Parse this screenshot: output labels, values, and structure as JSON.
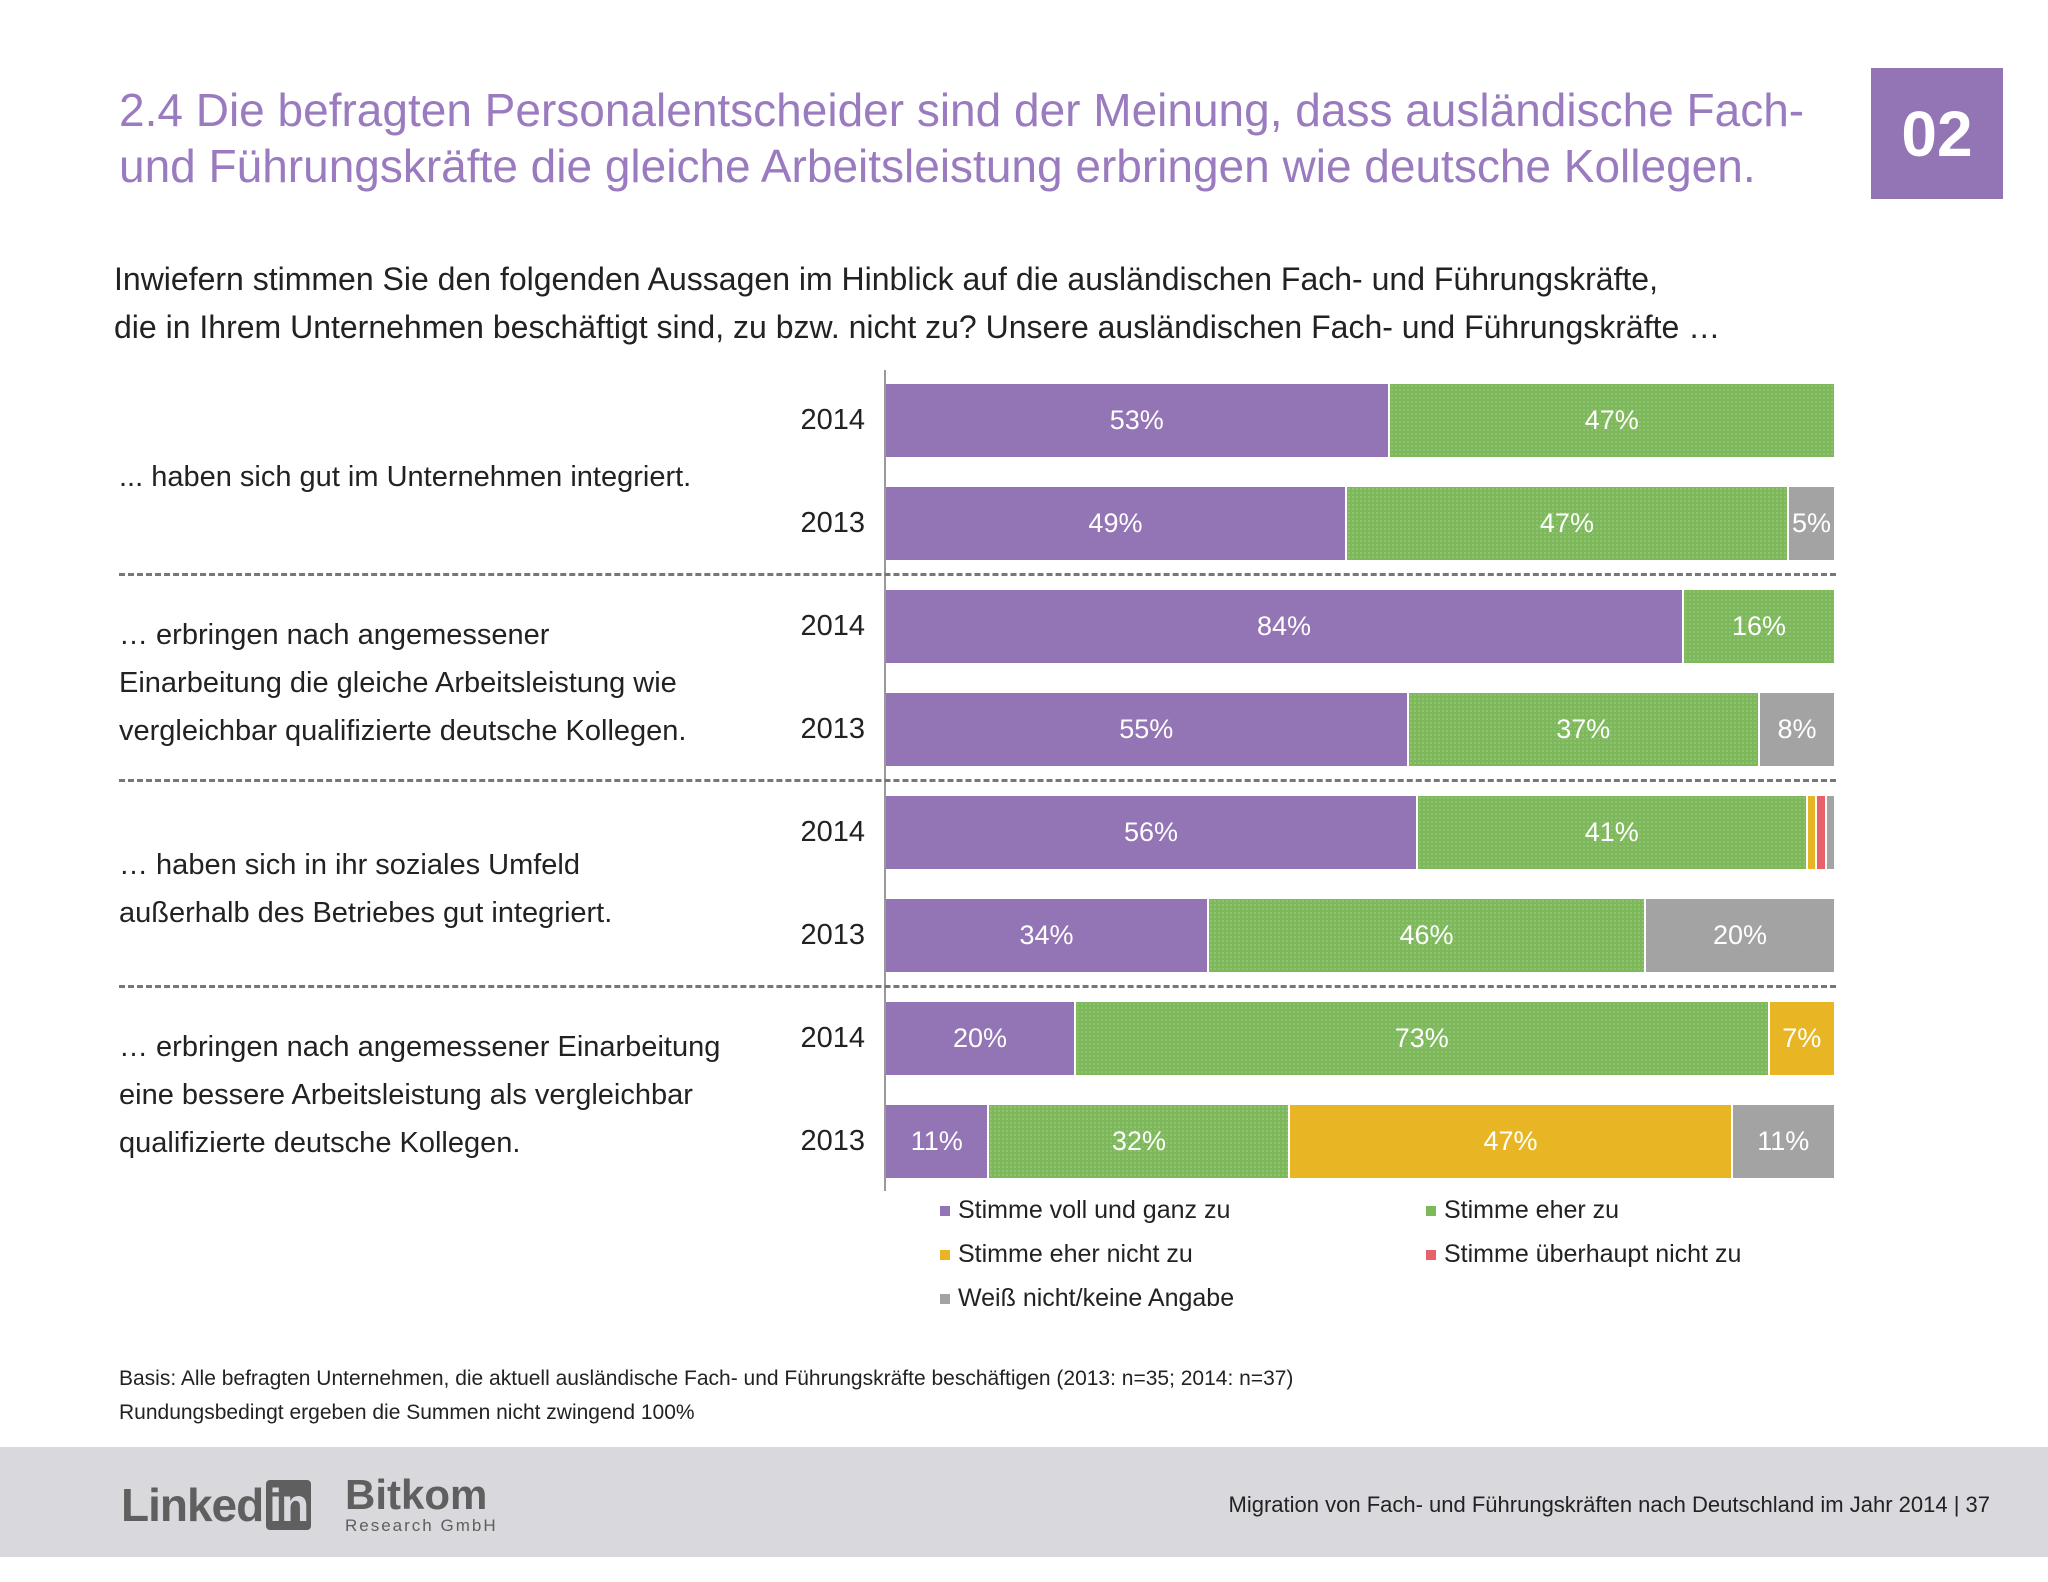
{
  "header": {
    "title_line1": "2.4 Die befragten Personalentscheider sind der Meinung, dass ausländische Fach-",
    "title_line2": "und Führungskräfte die gleiche Arbeitsleistung erbringen wie deutsche Kollegen.",
    "chapter_badge": "02"
  },
  "question_line1": "Inwiefern stimmen Sie den folgenden Aussagen im Hinblick auf die ausländischen Fach- und Führungskräfte,",
  "question_line2": "die in Ihrem Unternehmen beschäftigt sind, zu bzw. nicht zu? Unsere ausländischen Fach- und Führungskräfte …",
  "chart_data": {
    "type": "bar",
    "orientation": "horizontal-stacked",
    "legend_position": "bottom",
    "colors": {
      "voll": "#9374b4",
      "eher": "#7db85a",
      "eher_nicht": "#e8b624",
      "ueberhaupt_nicht": "#e8606a",
      "weiss_nicht": "#a3a3a3"
    },
    "legend": [
      {
        "key": "voll",
        "label": "Stimme voll und ganz zu"
      },
      {
        "key": "eher",
        "label": "Stimme eher zu"
      },
      {
        "key": "eher_nicht",
        "label": "Stimme eher nicht zu"
      },
      {
        "key": "ueberhaupt_nicht",
        "label": "Stimme überhaupt nicht zu"
      },
      {
        "key": "weiss_nicht",
        "label": "Weiß nicht/keine Angabe"
      }
    ],
    "groups": [
      {
        "statement": [
          "... haben sich gut im Unternehmen integriert."
        ],
        "rows": [
          {
            "year": "2014",
            "values": {
              "voll": 53,
              "eher": 47,
              "eher_nicht": 0,
              "ueberhaupt_nicht": 0,
              "weiss_nicht": 0
            },
            "labels": {
              "voll": "53%",
              "eher": "47%"
            }
          },
          {
            "year": "2013",
            "values": {
              "voll": 49,
              "eher": 47,
              "eher_nicht": 0,
              "ueberhaupt_nicht": 0,
              "weiss_nicht": 5
            },
            "labels": {
              "voll": "49%",
              "eher": "47%",
              "weiss_nicht": "5%"
            }
          }
        ]
      },
      {
        "statement": [
          "… erbringen nach angemessener",
          "Einarbeitung die gleiche Arbeitsleistung wie",
          "vergleichbar qualifizierte deutsche Kollegen."
        ],
        "rows": [
          {
            "year": "2014",
            "values": {
              "voll": 84,
              "eher": 16,
              "eher_nicht": 0,
              "ueberhaupt_nicht": 0,
              "weiss_nicht": 0
            },
            "labels": {
              "voll": "84%",
              "eher": "16%"
            }
          },
          {
            "year": "2013",
            "values": {
              "voll": 55,
              "eher": 37,
              "eher_nicht": 0,
              "ueberhaupt_nicht": 0,
              "weiss_nicht": 8
            },
            "labels": {
              "voll": "55%",
              "eher": "37%",
              "weiss_nicht": "8%"
            }
          }
        ]
      },
      {
        "statement": [
          "… haben sich in ihr soziales Umfeld",
          "außerhalb des Betriebes gut integriert."
        ],
        "rows": [
          {
            "year": "2014",
            "values": {
              "voll": 56,
              "eher": 41,
              "eher_nicht": 1,
              "ueberhaupt_nicht": 1,
              "weiss_nicht": 1
            },
            "labels": {
              "voll": "56%",
              "eher": "41%"
            }
          },
          {
            "year": "2013",
            "values": {
              "voll": 34,
              "eher": 46,
              "eher_nicht": 0,
              "ueberhaupt_nicht": 0,
              "weiss_nicht": 20
            },
            "labels": {
              "voll": "34%",
              "eher": "46%",
              "weiss_nicht": "20%"
            }
          }
        ]
      },
      {
        "statement": [
          "… erbringen nach angemessener Einarbeitung",
          "eine bessere Arbeitsleistung als vergleichbar",
          "qualifizierte deutsche Kollegen."
        ],
        "rows": [
          {
            "year": "2014",
            "values": {
              "voll": 20,
              "eher": 73,
              "eher_nicht": 7,
              "ueberhaupt_nicht": 0,
              "weiss_nicht": 0
            },
            "labels": {
              "voll": "20%",
              "eher": "73%",
              "eher_nicht": "7%"
            }
          },
          {
            "year": "2013",
            "values": {
              "voll": 11,
              "eher": 32,
              "eher_nicht": 47,
              "ueberhaupt_nicht": 0,
              "weiss_nicht": 11
            },
            "labels": {
              "voll": "11%",
              "eher": "32%",
              "eher_nicht": "47%",
              "weiss_nicht": "11%"
            }
          }
        ]
      }
    ]
  },
  "footnote_line1": "Basis: Alle befragten Unternehmen, die aktuell ausländische Fach- und Führungskräfte beschäftigen (2013: n=35; 2014: n=37)",
  "footnote_line2": "Rundungsbedingt ergeben die Summen nicht zwingend 100%",
  "footer": {
    "logo_linkedin": "LinkedIn",
    "logo_bitkom": "Bitkom Research GmbH",
    "text": "Migration von Fach- und Führungskräften nach Deutschland im Jahr 2014  |  37"
  }
}
